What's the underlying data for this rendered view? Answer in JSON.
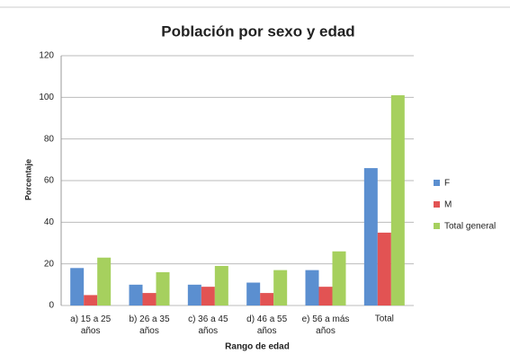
{
  "chart_data": {
    "type": "bar",
    "title": "Población por sexo y edad",
    "x_label": "Rango de edad",
    "y_label": "Porcentaje",
    "categories": [
      "a) 15 a 25 años",
      "b) 26 a 35 años",
      "c) 36 a 45 años",
      "d) 46 a 55 años",
      "e) 56 a más años",
      "Total"
    ],
    "series": [
      {
        "name": "F",
        "color": "#5b8fd0",
        "values": [
          18,
          10,
          10,
          11,
          17,
          66
        ]
      },
      {
        "name": "M",
        "color": "#e25353",
        "values": [
          5,
          6,
          9,
          6,
          9,
          35
        ]
      },
      {
        "name": "Total general",
        "color": "#a6d05e",
        "values": [
          23,
          16,
          19,
          17,
          26,
          101
        ]
      }
    ],
    "ylim": [
      0,
      120
    ],
    "yticks": [
      0,
      20,
      40,
      60,
      80,
      100,
      120
    ],
    "grid": true,
    "legend": "right"
  }
}
